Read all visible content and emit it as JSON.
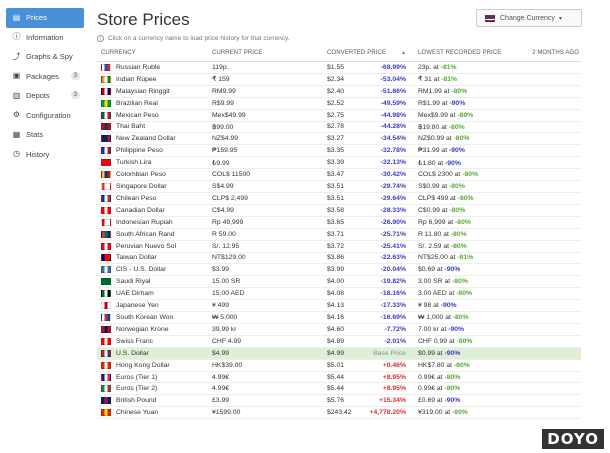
{
  "sidebar": {
    "items": [
      {
        "label": "Prices",
        "icon": "prices-icon",
        "active": true,
        "glyph": "▤"
      },
      {
        "label": "Information",
        "icon": "info-icon",
        "glyph": "ⓘ"
      },
      {
        "label": "Graphs & Spy",
        "icon": "graph-icon",
        "glyph": "⤴"
      },
      {
        "label": "Packages",
        "icon": "package-icon",
        "badge": "3",
        "glyph": "▣"
      },
      {
        "label": "Depots",
        "icon": "depot-icon",
        "badge": "3",
        "glyph": "▥"
      },
      {
        "label": "Configuration",
        "icon": "gear-icon",
        "glyph": "⚙"
      },
      {
        "label": "Stats",
        "icon": "stats-icon",
        "glyph": "▦"
      },
      {
        "label": "History",
        "icon": "history-icon",
        "glyph": "◷"
      }
    ]
  },
  "header": {
    "title": "Store Prices",
    "currency_button": "Change Currency",
    "hint": "Click on a currency name to load price history for that currency."
  },
  "table": {
    "headers": {
      "currency": "CURRENCY",
      "current": "CURRENT PRICE",
      "converted": "CONVERTED PRICE",
      "lowest": "LOWEST RECORDED PRICE",
      "ago": "2 MONTHS AGO"
    },
    "rows": [
      {
        "name": "Russian Ruble",
        "flag": [
          "#fff",
          "#2a4cb3",
          "#d52b1e"
        ],
        "current": "119p.",
        "converted": "$1.55",
        "diff": "-68.99%",
        "lowest": "23p. at",
        "pct": "-81%",
        "pct_color": "green"
      },
      {
        "name": "Indian Rupee",
        "flag": [
          "#f49233",
          "#fff",
          "#138808"
        ],
        "current": "₹ 159",
        "converted": "$2.34",
        "diff": "-53.04%",
        "lowest": "₹ 31 at",
        "pct": "-81%",
        "pct_color": "green"
      },
      {
        "name": "Malaysian Ringgit",
        "flag": [
          "#cc0001",
          "#fff",
          "#010066"
        ],
        "current": "RM9.99",
        "converted": "$2.40",
        "diff": "-51.86%",
        "lowest": "RM1.99 at",
        "pct": "-80%",
        "pct_color": "green"
      },
      {
        "name": "Brazilian Real",
        "flag": [
          "#009b3a",
          "#fedf00",
          "#009b3a"
        ],
        "current": "R$9.99",
        "converted": "$2.52",
        "diff": "-49.59%",
        "lowest": "R$1.99 at",
        "pct": "-90%",
        "pct_color": "blue"
      },
      {
        "name": "Mexican Peso",
        "flag": [
          "#006847",
          "#fff",
          "#ce1126"
        ],
        "current": "Mex$49.99",
        "converted": "$2.75",
        "diff": "-44.98%",
        "lowest": "Mex$9.99 at",
        "pct": "-80%",
        "pct_color": "green"
      },
      {
        "name": "Thai Baht",
        "flag": [
          "#a51931",
          "#2d2a4a",
          "#a51931"
        ],
        "current": "฿99.00",
        "converted": "$2.78",
        "diff": "-44.28%",
        "lowest": "฿19.80 at",
        "pct": "-80%",
        "pct_color": "green"
      },
      {
        "name": "New Zealand Dollar",
        "flag": [
          "#012169",
          "#012169",
          "#c8102e"
        ],
        "current": "NZ$4.99",
        "converted": "$3.27",
        "diff": "-34.54%",
        "lowest": "NZ$0.99 at",
        "pct": "-80%",
        "pct_color": "green"
      },
      {
        "name": "Philippine Peso",
        "flag": [
          "#0038a8",
          "#fff",
          "#ce1126"
        ],
        "current": "₱159.95",
        "converted": "$3.35",
        "diff": "-32.78%",
        "lowest": "₱31.99 at",
        "pct": "-90%",
        "pct_color": "blue"
      },
      {
        "name": "Turkish Lira",
        "flag": [
          "#e30a17",
          "#e30a17",
          "#e30a17"
        ],
        "current": "₺9.99",
        "converted": "$3.39",
        "diff": "-32.13%",
        "lowest": "₺1.80 at",
        "pct": "-90%",
        "pct_color": "blue"
      },
      {
        "name": "Colombian Peso",
        "flag": [
          "#fcd116",
          "#003893",
          "#ce1126"
        ],
        "current": "COL$ 11500",
        "converted": "$3.47",
        "diff": "-30.42%",
        "lowest": "COL$ 2300 at",
        "pct": "-80%",
        "pct_color": "green"
      },
      {
        "name": "Singapore Dollar",
        "flag": [
          "#ef3340",
          "#fff",
          "#fff"
        ],
        "current": "S$4.99",
        "converted": "$3.51",
        "diff": "-29.74%",
        "lowest": "S$0.99 at",
        "pct": "-80%",
        "pct_color": "green"
      },
      {
        "name": "Chilean Peso",
        "flag": [
          "#0039a6",
          "#fff",
          "#d52b1e"
        ],
        "current": "CLP$ 2,499",
        "converted": "$3.51",
        "diff": "-29.64%",
        "lowest": "CLP$ 499 at",
        "pct": "-80%",
        "pct_color": "green"
      },
      {
        "name": "Canadian Dollar",
        "flag": [
          "#ff0000",
          "#fff",
          "#ff0000"
        ],
        "current": "C$4.99",
        "converted": "$3.58",
        "diff": "-28.33%",
        "lowest": "C$0.99 at",
        "pct": "-80%",
        "pct_color": "green"
      },
      {
        "name": "Indonesian Rupiah",
        "flag": [
          "#ce1126",
          "#fff",
          "#fff"
        ],
        "current": "Rp 49,999",
        "converted": "$3.65",
        "diff": "-26.90%",
        "lowest": "Rp 6,999 at",
        "pct": "-80%",
        "pct_color": "green"
      },
      {
        "name": "South African Rand",
        "flag": [
          "#de3831",
          "#007a4d",
          "#002395"
        ],
        "current": "R 59.00",
        "converted": "$3.71",
        "diff": "-25.71%",
        "lowest": "R 11.80 at",
        "pct": "-80%",
        "pct_color": "green"
      },
      {
        "name": "Peruvian Nuevo Sol",
        "flag": [
          "#d91023",
          "#fff",
          "#d91023"
        ],
        "current": "S/. 12.95",
        "converted": "$3.72",
        "diff": "-25.41%",
        "lowest": "S/. 2.59 at",
        "pct": "-80%",
        "pct_color": "green"
      },
      {
        "name": "Taiwan Dollar",
        "flag": [
          "#000095",
          "#fe0000",
          "#fe0000"
        ],
        "current": "NT$129.00",
        "converted": "$3.86",
        "diff": "-22.63%",
        "lowest": "NT$25.00 at",
        "pct": "-81%",
        "pct_color": "green"
      },
      {
        "name": "CIS - U.S. Dollar",
        "flag": [
          "#3c6ea8",
          "#fff",
          "#3c6ea8"
        ],
        "current": "$3.99",
        "converted": "$3.99",
        "diff": "-20.04%",
        "lowest": "$0.69 at",
        "pct": "-90%",
        "pct_color": "blue"
      },
      {
        "name": "Saudi Riyal",
        "flag": [
          "#006c35",
          "#006c35",
          "#006c35"
        ],
        "current": "15.00 SR",
        "converted": "$4.00",
        "diff": "-19.82%",
        "lowest": "3.00 SR at",
        "pct": "-80%",
        "pct_color": "green"
      },
      {
        "name": "UAE Dirham",
        "flag": [
          "#00732f",
          "#fff",
          "#000"
        ],
        "current": "15.00 AED",
        "converted": "$4.08",
        "diff": "-18.16%",
        "lowest": "3.00 AED at",
        "pct": "-80%",
        "pct_color": "green"
      },
      {
        "name": "Japanese Yen",
        "flag": [
          "#fff",
          "#bc002d",
          "#fff"
        ],
        "current": "¥ 499",
        "converted": "$4.13",
        "diff": "-17.33%",
        "lowest": "¥ 98 at",
        "pct": "-90%",
        "pct_color": "blue"
      },
      {
        "name": "South Korean Won",
        "flag": [
          "#fff",
          "#cd2e3a",
          "#0047a0"
        ],
        "current": "₩ 5,000",
        "converted": "$4.16",
        "diff": "-16.69%",
        "lowest": "₩ 1,000 at",
        "pct": "-80%",
        "pct_color": "green"
      },
      {
        "name": "Norwegian Krone",
        "flag": [
          "#ba0c2f",
          "#00205b",
          "#ba0c2f"
        ],
        "current": "39.99 kr",
        "converted": "$4.60",
        "diff": "-7.72%",
        "lowest": "7.00 kr at",
        "pct": "-90%",
        "pct_color": "blue"
      },
      {
        "name": "Swiss Franc",
        "flag": [
          "#ff0000",
          "#fff",
          "#ff0000"
        ],
        "current": "CHF 4.99",
        "converted": "$4.89",
        "diff": "-2.01%",
        "lowest": "CHF 0.99 at",
        "pct": "-80%",
        "pct_color": "green"
      },
      {
        "name": "U.S. Dollar",
        "flag": [
          "#b22234",
          "#fff",
          "#3c3b6e"
        ],
        "current": "$4.99",
        "converted": "$4.99",
        "diff": "Base Price",
        "lowest": "$0.99 at",
        "pct": "-90%",
        "pct_color": "blue",
        "base": true
      },
      {
        "name": "Hong Kong Dollar",
        "flag": [
          "#de2910",
          "#fff",
          "#de2910"
        ],
        "current": "HK$39.00",
        "converted": "$5.01",
        "diff": "+0.46%",
        "lowest": "HK$7.80 at",
        "pct": "-80%",
        "pct_color": "green"
      },
      {
        "name": "Euros (Tier 1)",
        "flag": [
          "#002395",
          "#fff",
          "#ed2939"
        ],
        "current": "4.99€",
        "converted": "$5.44",
        "diff": "+8.95%",
        "lowest": "0.99€ at",
        "pct": "-80%",
        "pct_color": "green"
      },
      {
        "name": "Euros (Tier 2)",
        "flag": [
          "#009246",
          "#fff",
          "#ce2b37"
        ],
        "current": "4.99€",
        "converted": "$5.44",
        "diff": "+8.95%",
        "lowest": "0.99€ at",
        "pct": "-80%",
        "pct_color": "green"
      },
      {
        "name": "British Pound",
        "flag": [
          "#012169",
          "#c8102e",
          "#012169"
        ],
        "current": "£3.99",
        "converted": "$5.76",
        "diff": "+15.34%",
        "lowest": "£0.69 at",
        "pct": "-90%",
        "pct_color": "blue"
      },
      {
        "name": "Chinese Yuan",
        "flag": [
          "#de2910",
          "#ffde00",
          "#de2910"
        ],
        "current": "¥1599.00",
        "converted": "$243.42",
        "diff": "+4,778.20%",
        "lowest": "¥319.00 at",
        "pct": "-80%",
        "pct_color": "green"
      }
    ]
  },
  "watermark": "DOYO"
}
